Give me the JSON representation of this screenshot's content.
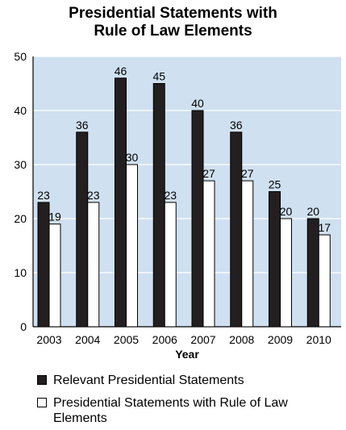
{
  "chart_data": {
    "type": "bar",
    "title_line1": "Presidential Statements with",
    "title_line2": "Rule of Law Elements",
    "xlabel": "Year",
    "ylabel": "",
    "ylim": [
      0,
      50
    ],
    "yticks": [
      0,
      10,
      20,
      30,
      40,
      50
    ],
    "grid": true,
    "categories": [
      "2003",
      "2004",
      "2005",
      "2006",
      "2007",
      "2008",
      "2009",
      "2010"
    ],
    "series": [
      {
        "name": "Relevant Presidential Statements",
        "values": [
          23,
          36,
          46,
          45,
          40,
          36,
          25,
          20
        ],
        "color": "#231f20"
      },
      {
        "name": "Presidential Statements with Rule of Law Elements",
        "values": [
          19,
          23,
          30,
          23,
          27,
          27,
          20,
          17
        ],
        "color": "#ffffff"
      }
    ],
    "plot_background": "#cfe0f0",
    "legend_position": "bottom"
  }
}
